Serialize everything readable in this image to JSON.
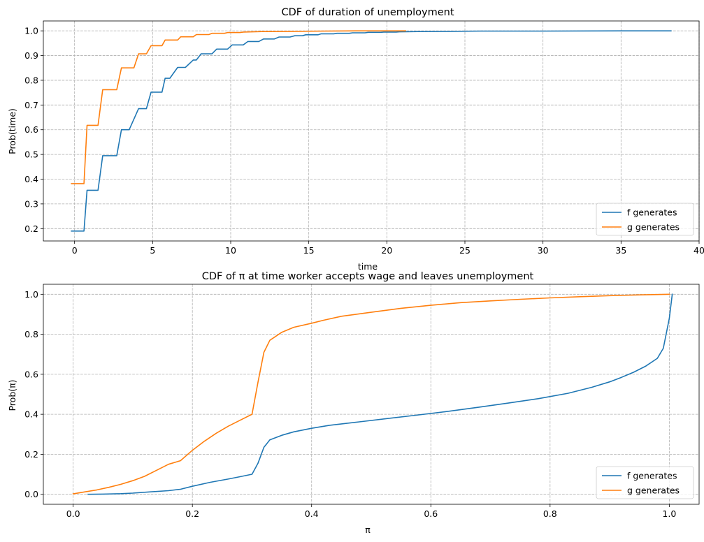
{
  "colors": {
    "series0": "#1f77b4",
    "series1": "#ff7f0e"
  },
  "chart_data": [
    {
      "type": "line",
      "title": "CDF of duration of unemployment",
      "xlabel": "time",
      "ylabel": "Prob(time)",
      "xlim": [
        -2,
        40
      ],
      "ylim": [
        0.15,
        1.04
      ],
      "xticks": [
        0,
        5,
        10,
        15,
        20,
        25,
        30,
        35,
        40
      ],
      "yticks": [
        0.2,
        0.3,
        0.4,
        0.5,
        0.6,
        0.7,
        0.8,
        0.9,
        1.0
      ],
      "grid": true,
      "legend": "lower-right",
      "series": [
        {
          "name": "f generates",
          "x": [
            -0.2,
            0.6,
            0.8,
            1.3,
            1.5,
            1.8,
            2.5,
            2.7,
            3.0,
            3.3,
            3.5,
            4.1,
            4.3,
            4.6,
            4.9,
            5.1,
            5.6,
            5.8,
            6.1,
            6.6,
            6.8,
            7.1,
            7.6,
            7.8,
            8.1,
            8.6,
            8.8,
            9.1,
            9.6,
            9.8,
            10.1,
            10.6,
            10.8,
            11.1,
            11.6,
            11.8,
            12.1,
            12.6,
            12.8,
            13.1,
            13.6,
            13.8,
            14.1,
            14.6,
            14.8,
            15.6,
            15.8,
            16.6,
            16.8,
            17.6,
            17.8,
            18.6,
            18.8,
            19.6,
            19.8,
            20.6,
            20.8,
            22,
            24,
            26,
            30,
            35,
            38.2
          ],
          "y": [
            0.19,
            0.19,
            0.355,
            0.355,
            0.355,
            0.495,
            0.495,
            0.495,
            0.6,
            0.6,
            0.6,
            0.685,
            0.685,
            0.685,
            0.752,
            0.752,
            0.752,
            0.808,
            0.808,
            0.852,
            0.852,
            0.852,
            0.882,
            0.882,
            0.907,
            0.907,
            0.907,
            0.926,
            0.926,
            0.926,
            0.943,
            0.943,
            0.943,
            0.957,
            0.957,
            0.957,
            0.967,
            0.967,
            0.967,
            0.975,
            0.975,
            0.975,
            0.98,
            0.98,
            0.984,
            0.984,
            0.988,
            0.988,
            0.99,
            0.99,
            0.992,
            0.992,
            0.994,
            0.994,
            0.995,
            0.995,
            0.996,
            0.997,
            0.998,
            0.999,
            0.999,
            1.0,
            1.0
          ]
        },
        {
          "name": "g generates",
          "x": [
            -0.2,
            0.6,
            0.8,
            1.3,
            1.5,
            1.8,
            2.5,
            2.7,
            3.0,
            3.3,
            3.5,
            3.8,
            4.1,
            4.3,
            4.6,
            4.9,
            5.1,
            5.6,
            5.8,
            6.1,
            6.6,
            6.8,
            7.1,
            7.6,
            7.8,
            8.6,
            8.8,
            9.6,
            9.8,
            10.6,
            10.8,
            12,
            14,
            16,
            18,
            21.2
          ],
          "y": [
            0.382,
            0.382,
            0.618,
            0.618,
            0.618,
            0.762,
            0.762,
            0.762,
            0.85,
            0.85,
            0.85,
            0.85,
            0.907,
            0.907,
            0.907,
            0.94,
            0.94,
            0.94,
            0.963,
            0.963,
            0.963,
            0.976,
            0.976,
            0.976,
            0.985,
            0.985,
            0.99,
            0.99,
            0.993,
            0.993,
            0.995,
            0.997,
            0.998,
            0.999,
            1.0,
            1.0
          ]
        }
      ]
    },
    {
      "type": "line",
      "title": "CDF of π at time worker accepts wage and leaves unemployment",
      "xlabel": "π",
      "ylabel": "Prob(π)",
      "xlim": [
        -0.05,
        1.05
      ],
      "ylim": [
        -0.05,
        1.05
      ],
      "xticks": [
        0.0,
        0.2,
        0.4,
        0.6,
        0.8,
        1.0
      ],
      "yticks": [
        0.0,
        0.2,
        0.4,
        0.6,
        0.8,
        1.0
      ],
      "grid": true,
      "legend": "lower-right",
      "series": [
        {
          "name": "f generates",
          "x": [
            0.025,
            0.05,
            0.08,
            0.1,
            0.13,
            0.16,
            0.18,
            0.2,
            0.23,
            0.26,
            0.28,
            0.3,
            0.31,
            0.32,
            0.33,
            0.35,
            0.37,
            0.4,
            0.43,
            0.48,
            0.53,
            0.58,
            0.63,
            0.68,
            0.73,
            0.78,
            0.83,
            0.87,
            0.9,
            0.92,
            0.94,
            0.96,
            0.98,
            0.99,
            1.0,
            1.005
          ],
          "y": [
            0.0,
            0.001,
            0.003,
            0.006,
            0.012,
            0.018,
            0.025,
            0.04,
            0.06,
            0.076,
            0.088,
            0.1,
            0.155,
            0.235,
            0.272,
            0.295,
            0.312,
            0.33,
            0.345,
            0.362,
            0.38,
            0.397,
            0.415,
            0.435,
            0.456,
            0.478,
            0.505,
            0.535,
            0.562,
            0.585,
            0.61,
            0.64,
            0.68,
            0.73,
            0.88,
            1.0
          ]
        },
        {
          "name": "g generates",
          "x": [
            0.0,
            0.02,
            0.04,
            0.06,
            0.08,
            0.1,
            0.12,
            0.14,
            0.16,
            0.18,
            0.2,
            0.22,
            0.24,
            0.26,
            0.28,
            0.3,
            0.31,
            0.32,
            0.33,
            0.35,
            0.37,
            0.4,
            0.42,
            0.45,
            0.5,
            0.55,
            0.6,
            0.65,
            0.7,
            0.75,
            0.8,
            0.85,
            0.9,
            0.95,
            1.0
          ],
          "y": [
            0.002,
            0.012,
            0.022,
            0.035,
            0.05,
            0.068,
            0.09,
            0.12,
            0.15,
            0.168,
            0.22,
            0.265,
            0.305,
            0.34,
            0.37,
            0.4,
            0.56,
            0.71,
            0.77,
            0.81,
            0.835,
            0.855,
            0.87,
            0.89,
            0.91,
            0.93,
            0.945,
            0.958,
            0.967,
            0.975,
            0.982,
            0.988,
            0.993,
            0.997,
            1.0
          ]
        }
      ]
    }
  ]
}
